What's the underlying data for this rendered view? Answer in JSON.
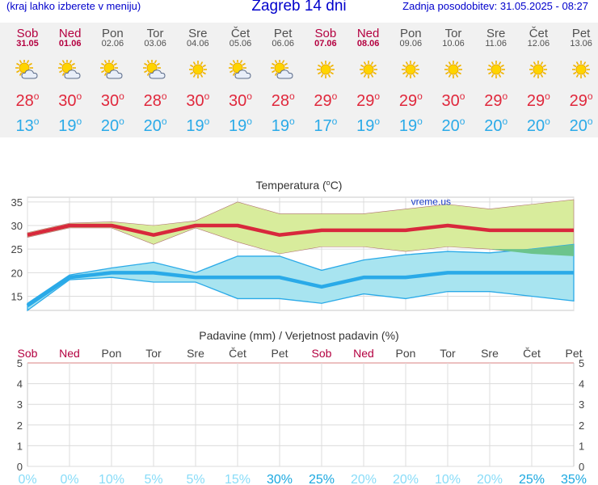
{
  "header": {
    "menu_hint": "(kraj lahko izberete v meniju)",
    "title": "Zagreb 14 dni",
    "updated": "Zadnja posodobitev: 31.05.2025 - 08:27"
  },
  "days": [
    {
      "name": "Sob",
      "date": "31.05",
      "weekend": true,
      "icon": "partly-cloudy-icon",
      "tmax": "28",
      "tmin": "13"
    },
    {
      "name": "Ned",
      "date": "01.06",
      "weekend": true,
      "icon": "partly-cloudy-icon",
      "tmax": "30",
      "tmin": "19"
    },
    {
      "name": "Pon",
      "date": "02.06",
      "weekend": false,
      "icon": "partly-cloudy-icon",
      "tmax": "30",
      "tmin": "20"
    },
    {
      "name": "Tor",
      "date": "03.06",
      "weekend": false,
      "icon": "partly-cloudy-icon",
      "tmax": "28",
      "tmin": "20"
    },
    {
      "name": "Sre",
      "date": "04.06",
      "weekend": false,
      "icon": "sun-icon",
      "tmax": "30",
      "tmin": "19"
    },
    {
      "name": "Čet",
      "date": "05.06",
      "weekend": false,
      "icon": "partly-cloudy-icon",
      "tmax": "30",
      "tmin": "19"
    },
    {
      "name": "Pet",
      "date": "06.06",
      "weekend": false,
      "icon": "partly-cloudy-icon",
      "tmax": "28",
      "tmin": "19"
    },
    {
      "name": "Sob",
      "date": "07.06",
      "weekend": true,
      "icon": "sun-icon",
      "tmax": "29",
      "tmin": "17"
    },
    {
      "name": "Ned",
      "date": "08.06",
      "weekend": true,
      "icon": "sun-icon",
      "tmax": "29",
      "tmin": "19"
    },
    {
      "name": "Pon",
      "date": "09.06",
      "weekend": false,
      "icon": "sun-icon",
      "tmax": "29",
      "tmin": "19"
    },
    {
      "name": "Tor",
      "date": "10.06",
      "weekend": false,
      "icon": "sun-icon",
      "tmax": "30",
      "tmin": "20"
    },
    {
      "name": "Sre",
      "date": "11.06",
      "weekend": false,
      "icon": "sun-icon",
      "tmax": "29",
      "tmin": "20"
    },
    {
      "name": "Čet",
      "date": "12.06",
      "weekend": false,
      "icon": "sun-icon",
      "tmax": "29",
      "tmin": "20"
    },
    {
      "name": "Pet",
      "date": "13.06",
      "weekend": false,
      "icon": "sun-icon",
      "tmax": "29",
      "tmin": "20"
    }
  ],
  "degree_symbol": "o",
  "colors": {
    "title_blue": "#0000cc",
    "weekend": "#b40040",
    "max_line": "#d8283c",
    "min_line": "#2aaae8",
    "max_band": "#d8ec9c",
    "min_band": "#a8e4f0",
    "overlap_band": "#6cc48c",
    "prob_light": "#88dcf8",
    "prob_dark": "#1aa8e0"
  },
  "watermark": "vreme.us",
  "chart_data": [
    {
      "type": "line",
      "title": "Temperatura (°C)",
      "title_text": "Temperatura (",
      "title_unit": "C)",
      "categories": [
        "31.05",
        "01.06",
        "02.06",
        "03.06",
        "04.06",
        "05.06",
        "06.06",
        "07.06",
        "08.06",
        "09.06",
        "10.06",
        "11.06",
        "12.06",
        "13.06"
      ],
      "ylim": [
        12,
        36
      ],
      "yticks": [
        "15",
        "20",
        "25",
        "30",
        "35"
      ],
      "series": [
        {
          "name": "max",
          "values": [
            28,
            30,
            30,
            28,
            30,
            30,
            28,
            29,
            29,
            29,
            30,
            29,
            29,
            29
          ],
          "band_low": [
            27.5,
            29.5,
            29.5,
            26,
            29.5,
            26.5,
            24,
            25.5,
            25.5,
            24.5,
            25.5,
            25,
            24,
            23.5
          ],
          "band_high": [
            28.5,
            30.5,
            30.8,
            30,
            31,
            35,
            32.5,
            32.5,
            32.5,
            33.5,
            34.5,
            33.5,
            34.5,
            35.5
          ]
        },
        {
          "name": "min",
          "values": [
            13,
            19,
            20,
            20,
            19,
            19,
            19,
            17,
            19,
            19,
            20,
            20,
            20,
            20
          ],
          "band_low": [
            12,
            18.5,
            19,
            18,
            18,
            14.5,
            14.5,
            13.5,
            15.5,
            14.5,
            16,
            16,
            15,
            14
          ],
          "band_high": [
            13.5,
            19.5,
            21,
            22.2,
            20,
            23.5,
            23.5,
            20.5,
            22.7,
            23.8,
            24.5,
            24.2,
            25,
            26
          ]
        }
      ]
    },
    {
      "type": "bar",
      "title": "Padavine (mm) / Verjetnost padavin (%)",
      "categories": [
        "Sob",
        "Ned",
        "Pon",
        "Tor",
        "Sre",
        "Čet",
        "Pet",
        "Sob",
        "Ned",
        "Pon",
        "Tor",
        "Sre",
        "Čet",
        "Pet"
      ],
      "weekend": [
        true,
        true,
        false,
        false,
        false,
        false,
        false,
        true,
        true,
        false,
        false,
        false,
        false,
        false
      ],
      "ylim": [
        0,
        5
      ],
      "yticks": [
        "0",
        "1",
        "2",
        "3",
        "4",
        "5"
      ],
      "values": [
        0,
        0,
        0,
        0,
        0,
        0,
        0,
        0,
        0,
        0,
        0,
        0,
        0,
        0
      ],
      "probability_labels": [
        "0%",
        "0%",
        "10%",
        "5%",
        "5%",
        "15%",
        "30%",
        "25%",
        "20%",
        "20%",
        "10%",
        "20%",
        "25%",
        "35%"
      ],
      "probability": [
        0,
        0,
        10,
        5,
        5,
        15,
        30,
        25,
        20,
        20,
        10,
        20,
        25,
        35
      ]
    }
  ]
}
